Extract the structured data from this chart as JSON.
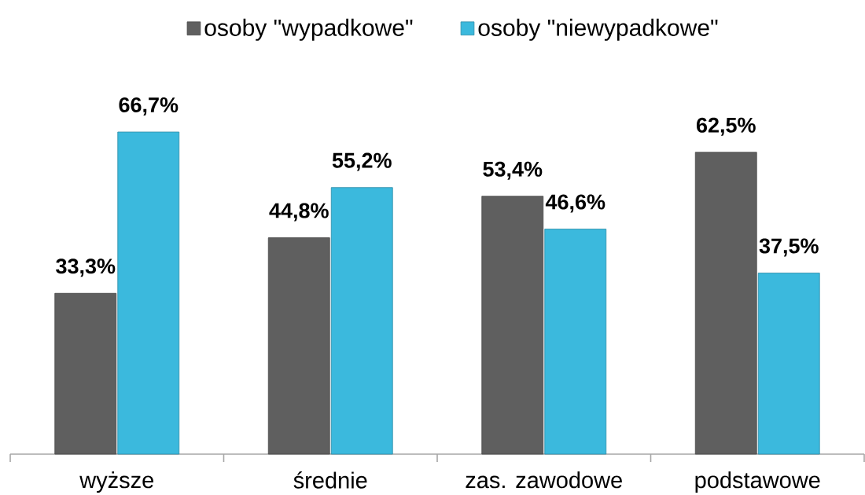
{
  "chart_data": {
    "type": "bar",
    "categories": [
      "wyższe",
      "średnie",
      "zas. zawodowe",
      "podstawowe"
    ],
    "series": [
      {
        "name": "osoby \"wypadkowe\"",
        "color": "#5f5f5f",
        "values": [
          33.3,
          44.8,
          53.4,
          62.5
        ],
        "value_labels": [
          "33,3%",
          "44,8%",
          "53,4%",
          "62,5%"
        ]
      },
      {
        "name": "osoby \"niewypadkowe\"",
        "color": "#3bb9dd",
        "values": [
          66.7,
          55.2,
          46.6,
          37.5
        ],
        "value_labels": [
          "66,7%",
          "55,2%",
          "46,6%",
          "37,5%"
        ]
      }
    ],
    "legend": "top",
    "tick_labels": "x"
  }
}
